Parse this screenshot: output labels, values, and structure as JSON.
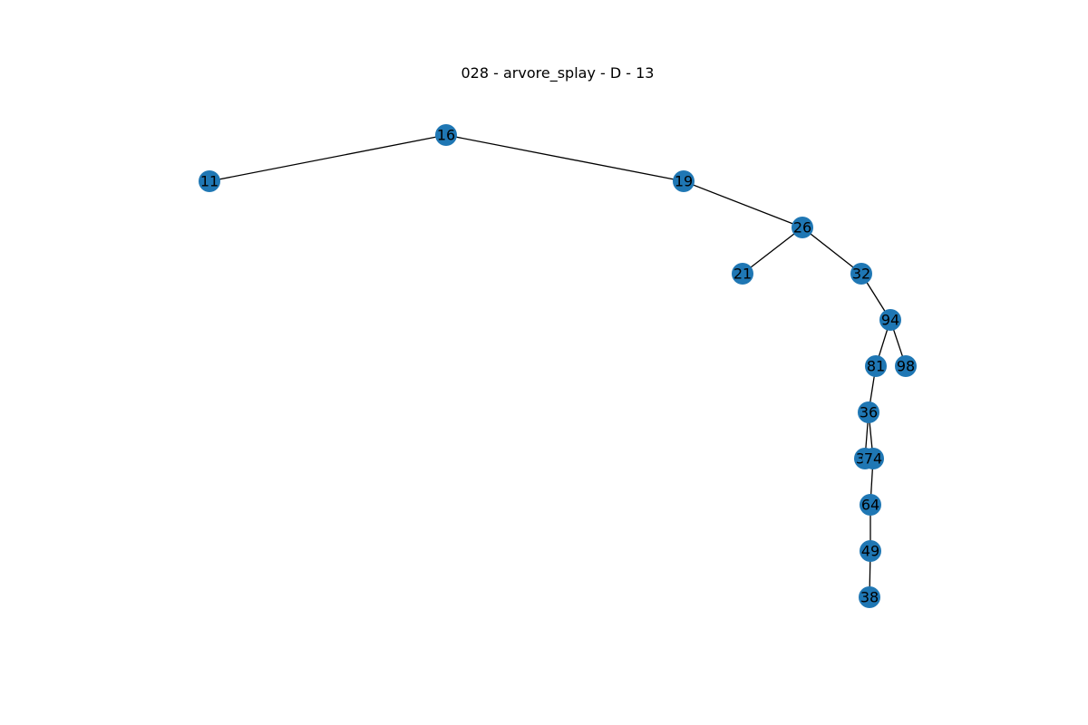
{
  "title": "028 - arvore_splay - D - 13",
  "colors": {
    "node": "#1f77b4",
    "edge": "#000000",
    "label": "#000000"
  },
  "tree": {
    "nodes": [
      "16",
      "11",
      "19",
      "26",
      "21",
      "32",
      "94",
      "81",
      "98",
      "36",
      "37",
      "74",
      "64",
      "49",
      "38"
    ],
    "edges": [
      [
        "16",
        "11"
      ],
      [
        "16",
        "19"
      ],
      [
        "19",
        "26"
      ],
      [
        "26",
        "21"
      ],
      [
        "26",
        "32"
      ],
      [
        "32",
        "94"
      ],
      [
        "94",
        "81"
      ],
      [
        "94",
        "98"
      ],
      [
        "81",
        "36"
      ],
      [
        "36",
        "37"
      ],
      [
        "36",
        "74"
      ],
      [
        "74",
        "64"
      ],
      [
        "64",
        "49"
      ],
      [
        "49",
        "38"
      ]
    ]
  }
}
